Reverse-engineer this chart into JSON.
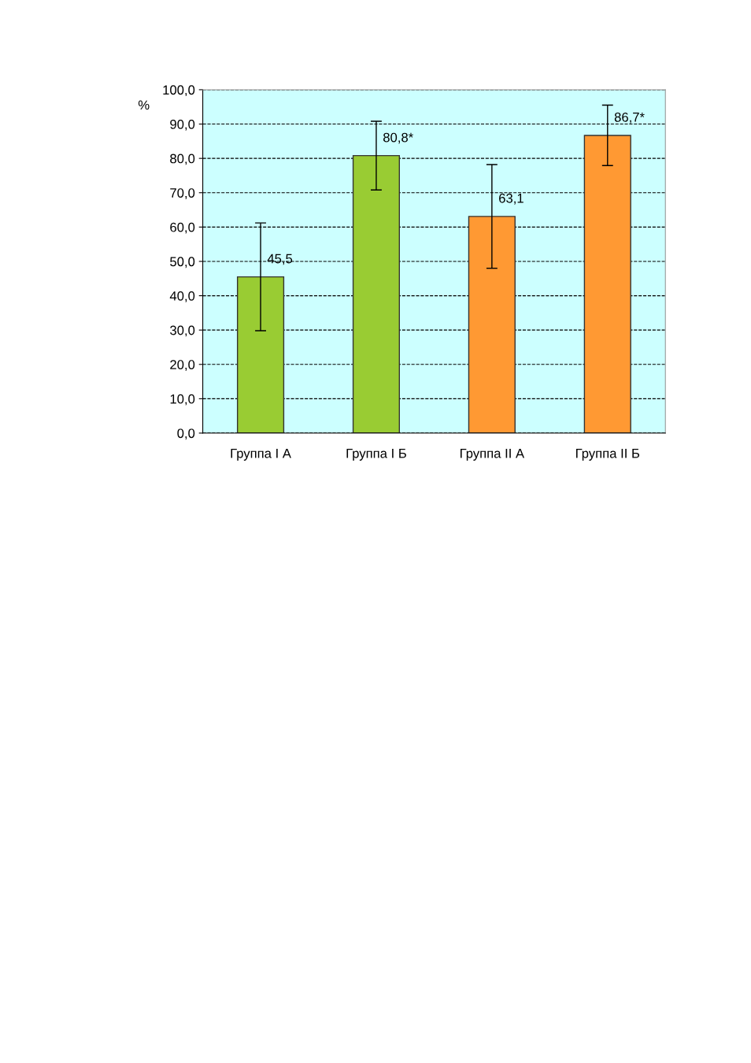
{
  "chart_data": {
    "type": "bar",
    "ylabel": "%",
    "categories": [
      "Группа I А",
      "Группа I Б",
      "Группа II А",
      "Группа II Б"
    ],
    "values": [
      45.5,
      80.8,
      63.1,
      86.7
    ],
    "errors": [
      15.7,
      10.0,
      15.1,
      8.8
    ],
    "colors": [
      "#99cc33",
      "#99cc33",
      "#ff9933",
      "#ff9933"
    ],
    "value_labels": [
      "45,5",
      "80,8*",
      "63,1",
      "86,7*"
    ],
    "ylim": [
      0,
      100
    ],
    "yticks": [
      {
        "value": 0,
        "label": "0,0"
      },
      {
        "value": 10,
        "label": "10,0"
      },
      {
        "value": 20,
        "label": "20,0"
      },
      {
        "value": 30,
        "label": "30,0"
      },
      {
        "value": 40,
        "label": "40,0"
      },
      {
        "value": 50,
        "label": "50,0"
      },
      {
        "value": 60,
        "label": "60,0"
      },
      {
        "value": 70,
        "label": "70,0"
      },
      {
        "value": 80,
        "label": "80,0"
      },
      {
        "value": 90,
        "label": "90,0"
      },
      {
        "value": 100,
        "label": "100,0"
      }
    ],
    "grid": "y",
    "legend": false
  }
}
